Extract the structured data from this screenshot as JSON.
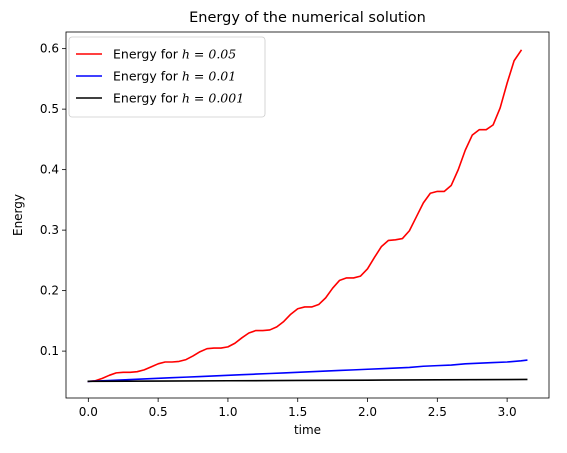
{
  "chart_data": {
    "type": "line",
    "title": "Energy of the numerical solution",
    "xlabel": "time",
    "ylabel": "Energy",
    "xlim": [
      -0.16,
      3.3
    ],
    "ylim": [
      0.0225,
      0.6275
    ],
    "xticks": [
      0.0,
      0.5,
      1.0,
      1.5,
      2.0,
      2.5,
      3.0
    ],
    "xtick_labels": [
      "0.0",
      "0.5",
      "1.0",
      "1.5",
      "2.0",
      "2.5",
      "3.0"
    ],
    "yticks": [
      0.1,
      0.2,
      0.3,
      0.4,
      0.5,
      0.6
    ],
    "ytick_labels": [
      "0.1",
      "0.2",
      "0.3",
      "0.4",
      "0.5",
      "0.6"
    ],
    "grid": false,
    "legend_position": "upper-left",
    "series": [
      {
        "name": "Energy for h = 0.05",
        "legend_prefix": "Energy for ",
        "legend_math": "h = 0.05",
        "color": "#ff0000",
        "x": [
          0.0,
          0.05,
          0.1,
          0.15,
          0.2,
          0.25,
          0.3,
          0.35,
          0.4,
          0.45,
          0.5,
          0.55,
          0.6,
          0.65,
          0.7,
          0.75,
          0.8,
          0.85,
          0.9,
          0.95,
          1.0,
          1.05,
          1.1,
          1.15,
          1.2,
          1.25,
          1.3,
          1.35,
          1.4,
          1.45,
          1.5,
          1.55,
          1.6,
          1.65,
          1.7,
          1.75,
          1.8,
          1.85,
          1.9,
          1.95,
          2.0,
          2.05,
          2.1,
          2.15,
          2.2,
          2.25,
          2.3,
          2.35,
          2.4,
          2.45,
          2.5,
          2.55,
          2.6,
          2.65,
          2.7,
          2.75,
          2.8,
          2.85,
          2.9,
          2.95,
          3.0,
          3.05,
          3.1
        ],
        "y": [
          0.05,
          0.051,
          0.055,
          0.06,
          0.064,
          0.065,
          0.065,
          0.066,
          0.069,
          0.074,
          0.079,
          0.082,
          0.082,
          0.083,
          0.086,
          0.092,
          0.099,
          0.104,
          0.105,
          0.105,
          0.107,
          0.113,
          0.122,
          0.13,
          0.134,
          0.134,
          0.135,
          0.14,
          0.149,
          0.161,
          0.17,
          0.173,
          0.173,
          0.177,
          0.188,
          0.204,
          0.217,
          0.221,
          0.221,
          0.224,
          0.236,
          0.255,
          0.273,
          0.283,
          0.284,
          0.286,
          0.299,
          0.322,
          0.345,
          0.361,
          0.364,
          0.364,
          0.374,
          0.4,
          0.432,
          0.457,
          0.466,
          0.466,
          0.474,
          0.502,
          0.543,
          0.58,
          0.597
        ]
      },
      {
        "name": "Energy for h = 0.01",
        "legend_prefix": "Energy for ",
        "legend_math": "h = 0.01",
        "color": "#0000ff",
        "x": [
          0.0,
          0.1,
          0.2,
          0.3,
          0.4,
          0.5,
          0.6,
          0.7,
          0.8,
          0.9,
          1.0,
          1.1,
          1.2,
          1.3,
          1.4,
          1.5,
          1.6,
          1.7,
          1.8,
          1.9,
          2.0,
          2.1,
          2.2,
          2.3,
          2.4,
          2.5,
          2.6,
          2.7,
          2.8,
          2.9,
          3.0,
          3.1,
          3.14
        ],
        "y": [
          0.05,
          0.051,
          0.052,
          0.053,
          0.054,
          0.055,
          0.056,
          0.057,
          0.058,
          0.059,
          0.06,
          0.061,
          0.062,
          0.063,
          0.064,
          0.065,
          0.066,
          0.067,
          0.068,
          0.069,
          0.07,
          0.071,
          0.072,
          0.073,
          0.075,
          0.076,
          0.077,
          0.079,
          0.08,
          0.081,
          0.082,
          0.084,
          0.085
        ]
      },
      {
        "name": "Energy for h = 0.001",
        "legend_prefix": "Energy for ",
        "legend_math": "h = 0.001",
        "color": "#000000",
        "x": [
          0.0,
          0.5,
          1.0,
          1.5,
          2.0,
          2.5,
          3.0,
          3.14
        ],
        "y": [
          0.05,
          0.0505,
          0.051,
          0.0515,
          0.052,
          0.0525,
          0.053,
          0.0532
        ]
      }
    ]
  }
}
